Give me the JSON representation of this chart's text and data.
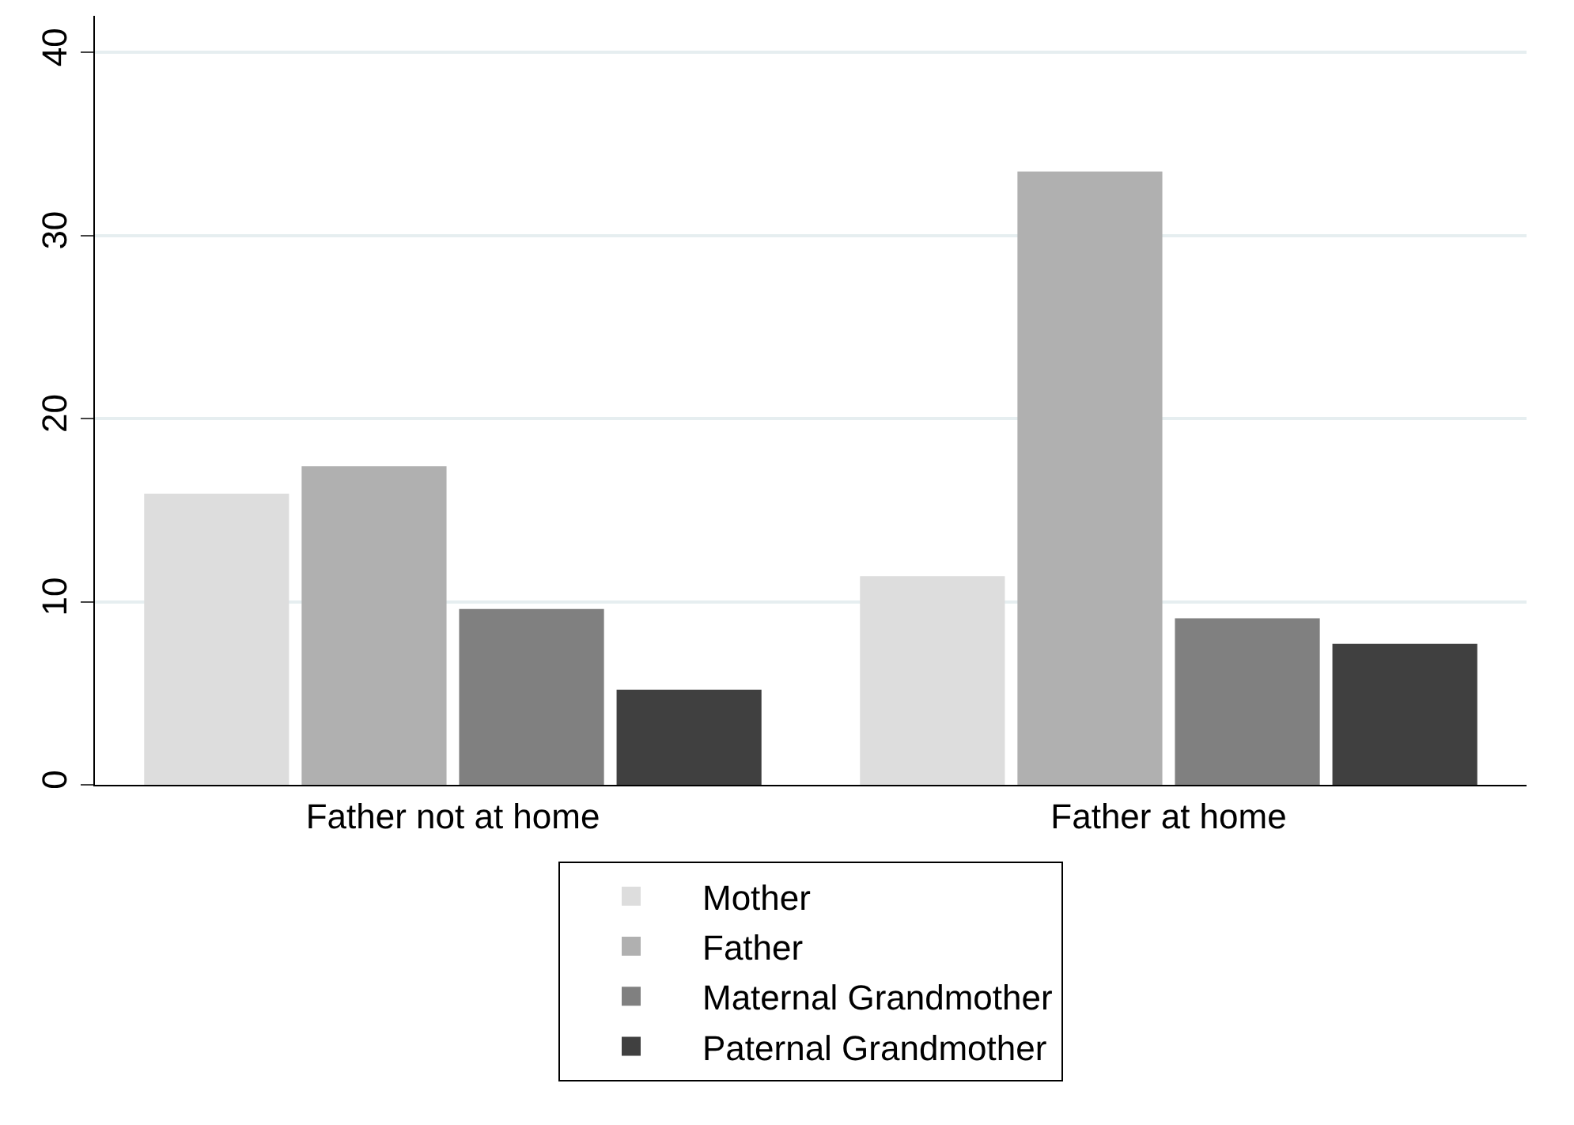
{
  "chart_data": {
    "type": "bar",
    "categories": [
      "Father not at home",
      "Father at home"
    ],
    "series": [
      {
        "name": "Mother",
        "color": "#dddddd",
        "values": [
          15.9,
          11.4
        ]
      },
      {
        "name": "Father",
        "color": "#b0b0b0",
        "values": [
          17.4,
          33.5
        ]
      },
      {
        "name": "Maternal Grandmother",
        "color": "#808080",
        "values": [
          9.6,
          9.1
        ]
      },
      {
        "name": "Paternal Grandmother",
        "color": "#404040",
        "values": [
          5.2,
          7.7
        ]
      }
    ],
    "ylim": [
      0,
      42
    ],
    "yticks": [
      0,
      10,
      20,
      30,
      40
    ],
    "grid": "y",
    "legend": "bottom"
  }
}
